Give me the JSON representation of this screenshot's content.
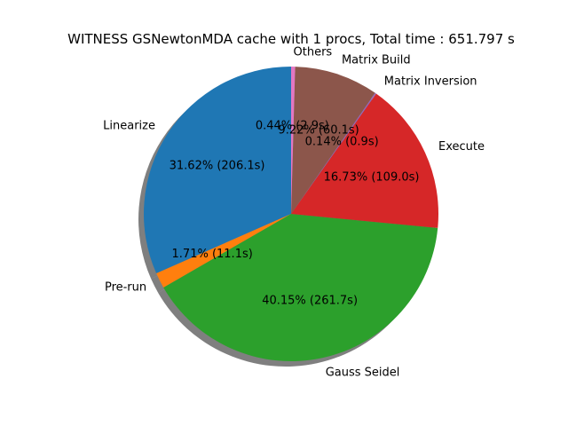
{
  "chart_data": {
    "type": "pie",
    "title": "WITNESS GSNewtonMDA cache with 1 procs, Total time : 651.797 s",
    "start_angle_deg": 90,
    "direction": "counterclockwise",
    "shadow": true,
    "slices": [
      {
        "label": "Linearize",
        "percent": 31.62,
        "seconds": 206.1,
        "pct_text": "31.62%  (206.1s)",
        "color": "#1f77b4"
      },
      {
        "label": "Pre-run",
        "percent": 1.71,
        "seconds": 11.1,
        "pct_text": "1.71%  (11.1s)",
        "color": "#ff7f0e"
      },
      {
        "label": "Gauss Seidel",
        "percent": 40.15,
        "seconds": 261.7,
        "pct_text": "40.15%  (261.7s)",
        "color": "#2ca02c"
      },
      {
        "label": "Execute",
        "percent": 16.73,
        "seconds": 109.0,
        "pct_text": "16.73%  (109.0s)",
        "color": "#d62728"
      },
      {
        "label": "Matrix Inversion",
        "percent": 0.14,
        "seconds": 0.9,
        "pct_text": "0.14%  (0.9s)",
        "color": "#9467bd"
      },
      {
        "label": "Matrix Build",
        "percent": 9.22,
        "seconds": 60.1,
        "pct_text": "9.22%  (60.1s)",
        "color": "#8c564b"
      },
      {
        "label": "Others",
        "percent": 0.44,
        "seconds": 2.9,
        "pct_text": "0.44%  (2.9s)",
        "color": "#e377c2"
      }
    ]
  }
}
